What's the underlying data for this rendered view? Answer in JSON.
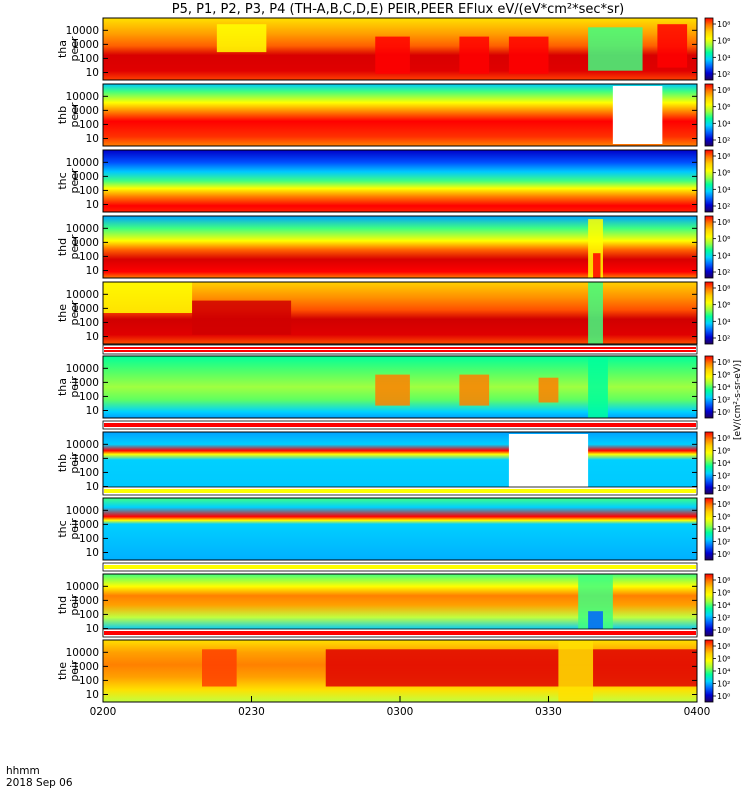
{
  "chart_data": {
    "type": "heatmap",
    "title": "P5, P1, P2, P3, P4 (TH-A,B,C,D,E) PEIR,PEER EFlux eV/(eV*cm²*sec*sr)",
    "x_label": "hhmm",
    "date_label": "2018 Sep 06",
    "x_ticks": [
      "0200",
      "0230",
      "0300",
      "0330",
      "0400"
    ],
    "x_range": [
      "0200",
      "0400"
    ],
    "y_scale": "log",
    "y_ticks": [
      "10",
      "100",
      "1000",
      "10000"
    ],
    "colorbar_unit": "[eV/(cm²-s-sr-eV)]",
    "panels": [
      {
        "probe": "tha",
        "species": "peer",
        "colorbar_ticks": [
          "10⁸",
          "10⁶",
          "10⁴",
          "10²"
        ]
      },
      {
        "probe": "thb",
        "species": "peer",
        "colorbar_ticks": [
          "10⁸",
          "10⁶",
          "10⁴",
          "10²"
        ]
      },
      {
        "probe": "thc",
        "species": "peer",
        "colorbar_ticks": [
          "10⁸",
          "10⁶",
          "10⁴",
          "10²"
        ]
      },
      {
        "probe": "thd",
        "species": "peer",
        "colorbar_ticks": [
          "10⁸",
          "10⁶",
          "10⁴",
          "10²"
        ]
      },
      {
        "probe": "the",
        "species": "peer",
        "colorbar_ticks": [
          "10⁸",
          "10⁶",
          "10⁴",
          "10²"
        ]
      },
      {
        "probe": "tha",
        "species": "peir",
        "colorbar_ticks": [
          "10⁸",
          "10⁶",
          "10⁴",
          "10²",
          "10⁰"
        ]
      },
      {
        "probe": "thb",
        "species": "peir",
        "colorbar_ticks": [
          "10⁸",
          "10⁶",
          "10⁴",
          "10²",
          "10⁰"
        ]
      },
      {
        "probe": "thc",
        "species": "peir",
        "colorbar_ticks": [
          "10⁸",
          "10⁶",
          "10⁴",
          "10²",
          "10⁰"
        ]
      },
      {
        "probe": "thd",
        "species": "peir",
        "colorbar_ticks": [
          "10⁸",
          "10⁶",
          "10⁴",
          "10²",
          "10⁰"
        ]
      },
      {
        "probe": "the",
        "species": "peir",
        "colorbar_ticks": [
          "10⁸",
          "10⁶",
          "10⁴",
          "10²",
          "10⁰"
        ]
      }
    ]
  }
}
